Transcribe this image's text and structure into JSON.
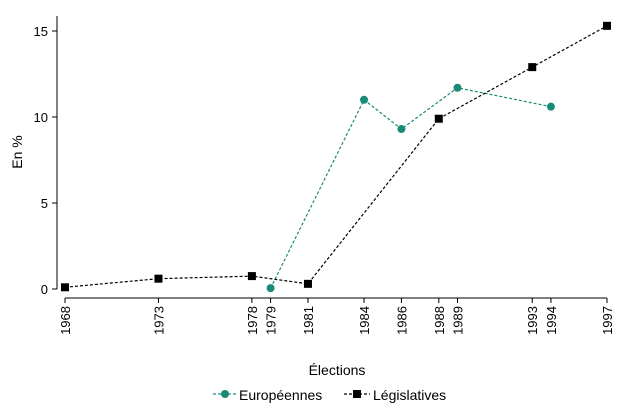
{
  "chart_data": {
    "type": "line",
    "xlabel": "Élections",
    "ylabel": "En %",
    "x_ticks": [
      1968,
      1973,
      1978,
      1979,
      1981,
      1984,
      1986,
      1988,
      1989,
      1993,
      1994,
      1997
    ],
    "x_range": [
      1968,
      1997
    ],
    "ylim": [
      0,
      15
    ],
    "y_ticks": [
      0,
      5,
      10,
      15
    ],
    "grid": false,
    "legend_position": "bottom",
    "series": [
      {
        "name": "Européennes",
        "color": "#1a8a78",
        "marker": "circle",
        "line_style": "dashed",
        "x": [
          1979,
          1984,
          1986,
          1989,
          1994
        ],
        "y": [
          0.05,
          11.0,
          9.3,
          11.7,
          10.6
        ]
      },
      {
        "name": "Législatives",
        "color": "#000000",
        "marker": "square",
        "line_style": "dashed",
        "x": [
          1968,
          1973,
          1978,
          1981,
          1988,
          1993,
          1997
        ],
        "y": [
          0.1,
          0.6,
          0.75,
          0.3,
          9.9,
          12.9,
          15.3
        ]
      }
    ]
  }
}
